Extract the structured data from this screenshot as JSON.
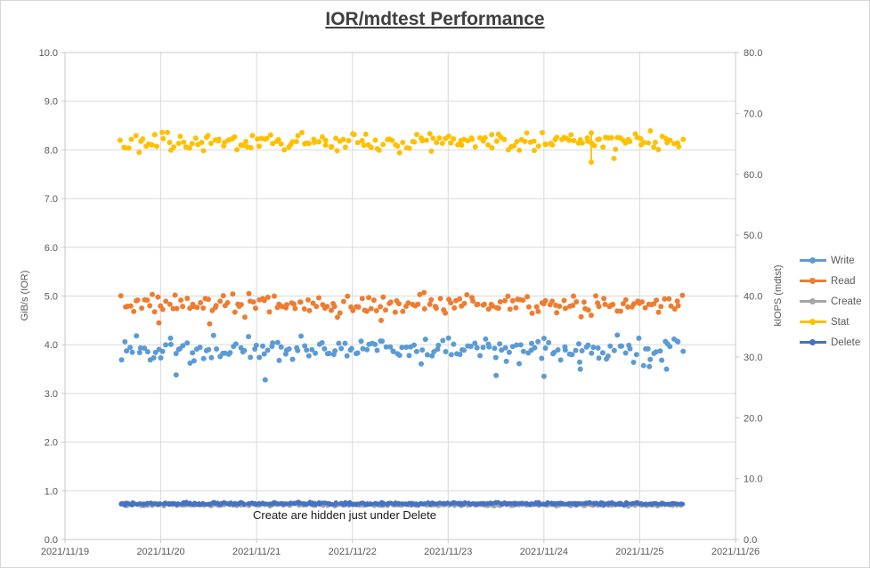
{
  "chart_data": {
    "type": "scatter",
    "title": "IOR/mdtest Performance",
    "annotation": "Create are hidden just under Delete",
    "seed": 20211119,
    "gridline_color": "#D9D9D9",
    "plot_border_color": "#C9C9C9",
    "tick_text_color": "#595959",
    "title_color": "#404040",
    "legend_position": "right",
    "x_axis": {
      "domain": [
        0,
        7
      ],
      "data_range": [
        0.59,
        6.44
      ],
      "tick_labels": [
        "2021/11/19",
        "2021/11/20",
        "2021/11/21",
        "2021/11/22",
        "2021/11/23",
        "2021/11/24",
        "2021/11/25",
        "2021/11/26"
      ]
    },
    "left_axis": {
      "label": "GiB/s (IOR)",
      "min": 0,
      "max": 10,
      "step": 1,
      "tick_labels": [
        "0.0",
        "1.0",
        "2.0",
        "3.0",
        "4.0",
        "5.0",
        "6.0",
        "7.0",
        "8.0",
        "9.0",
        "10.0"
      ]
    },
    "right_axis": {
      "label": "kIOPS (mdtst)",
      "min": 0,
      "max": 80,
      "step": 10,
      "tick_labels": [
        "0.0",
        "10.0",
        "20.0",
        "30.0",
        "40.0",
        "50.0",
        "60.0",
        "70.0",
        "80.0"
      ]
    },
    "series": [
      {
        "name": "Write",
        "unit": "GiB/s",
        "axis": "left",
        "color": "#5B9BD5",
        "marker_r": 3.0,
        "points": 200,
        "band": {
          "mean": 3.9,
          "std": 0.13,
          "clamp": [
            3.55,
            4.25
          ]
        },
        "outliers": [
          [
            1.16,
            3.38
          ],
          [
            2.09,
            3.28
          ],
          [
            4.5,
            3.37
          ],
          [
            5.0,
            3.35
          ],
          [
            5.38,
            3.5
          ],
          [
            6.1,
            3.55
          ],
          [
            6.28,
            3.5
          ]
        ]
      },
      {
        "name": "Read",
        "unit": "GiB/s",
        "axis": "left",
        "color": "#ED7D31",
        "marker_r": 3.0,
        "points": 200,
        "band": {
          "mean": 4.83,
          "std": 0.11,
          "clamp": [
            4.5,
            5.1
          ]
        },
        "outliers": [
          [
            0.98,
            4.45
          ],
          [
            1.51,
            4.43
          ],
          [
            3.3,
            4.5
          ]
        ]
      },
      {
        "name": "Create",
        "unit": "kIOPS",
        "axis": "right",
        "color": "#A5A5A5",
        "marker_r": 2.6,
        "points": 330,
        "band": {
          "mean": 5.7,
          "std": 0.1,
          "clamp": [
            5.4,
            6.0
          ]
        },
        "note": "hidden just under Delete"
      },
      {
        "name": "Stat",
        "unit": "kIOPS",
        "axis": "right",
        "color": "#FFC000",
        "marker_r": 3.0,
        "points": 200,
        "band": {
          "mean": 65.4,
          "std": 0.75,
          "clamp": [
            63.2,
            67.4
          ]
        },
        "outliers": [
          [
            5.73,
            62.6
          ]
        ],
        "spike": {
          "x": 5.494,
          "from": 66.8,
          "to": 62.0
        }
      },
      {
        "name": "Delete",
        "unit": "kIOPS",
        "axis": "right",
        "color": "#4472C4",
        "marker_r": 2.6,
        "points": 380,
        "band": {
          "mean": 5.9,
          "std": 0.1,
          "clamp": [
            5.6,
            6.2
          ]
        }
      }
    ]
  }
}
